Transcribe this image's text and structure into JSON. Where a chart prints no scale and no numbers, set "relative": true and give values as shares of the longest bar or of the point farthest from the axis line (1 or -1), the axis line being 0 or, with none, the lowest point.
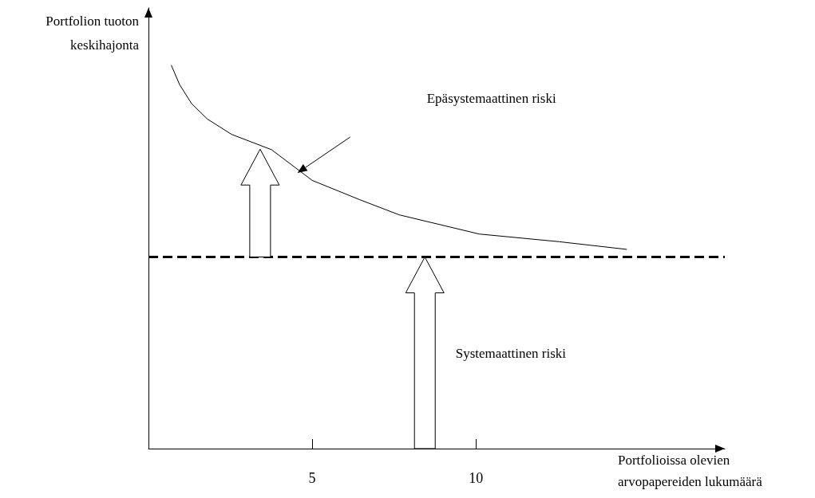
{
  "chart_data": {
    "type": "line",
    "relative": true,
    "xlabel": "Portfolioissa olevien\narvopapereiden lukumäärä",
    "ylabel": "Portfolion tuoton\nkeskihajonta",
    "xlim": [
      0,
      17.6
    ],
    "xticks": [
      5,
      10
    ],
    "x": [
      0.7,
      0.95,
      1.32,
      1.8,
      2.54,
      3.76,
      5,
      6.44,
      7.66,
      10.1,
      12.54,
      14.6
    ],
    "series": [
      {
        "color": "#000000",
        "values": [
          1,
          0.95,
          0.9,
          0.86,
          0.82,
          0.78,
          0.7,
          0.65,
          0.61,
          0.56,
          0.54,
          0.52
        ]
      }
    ],
    "marker": "none",
    "grid": false,
    "ref_lines": [
      {
        "axis": "y",
        "value": 0.5,
        "color": "#000000",
        "line_style": "dashed"
      }
    ],
    "annotations": [
      "Epäsystemaattinen riski",
      "Systemaattinen riski"
    ]
  }
}
